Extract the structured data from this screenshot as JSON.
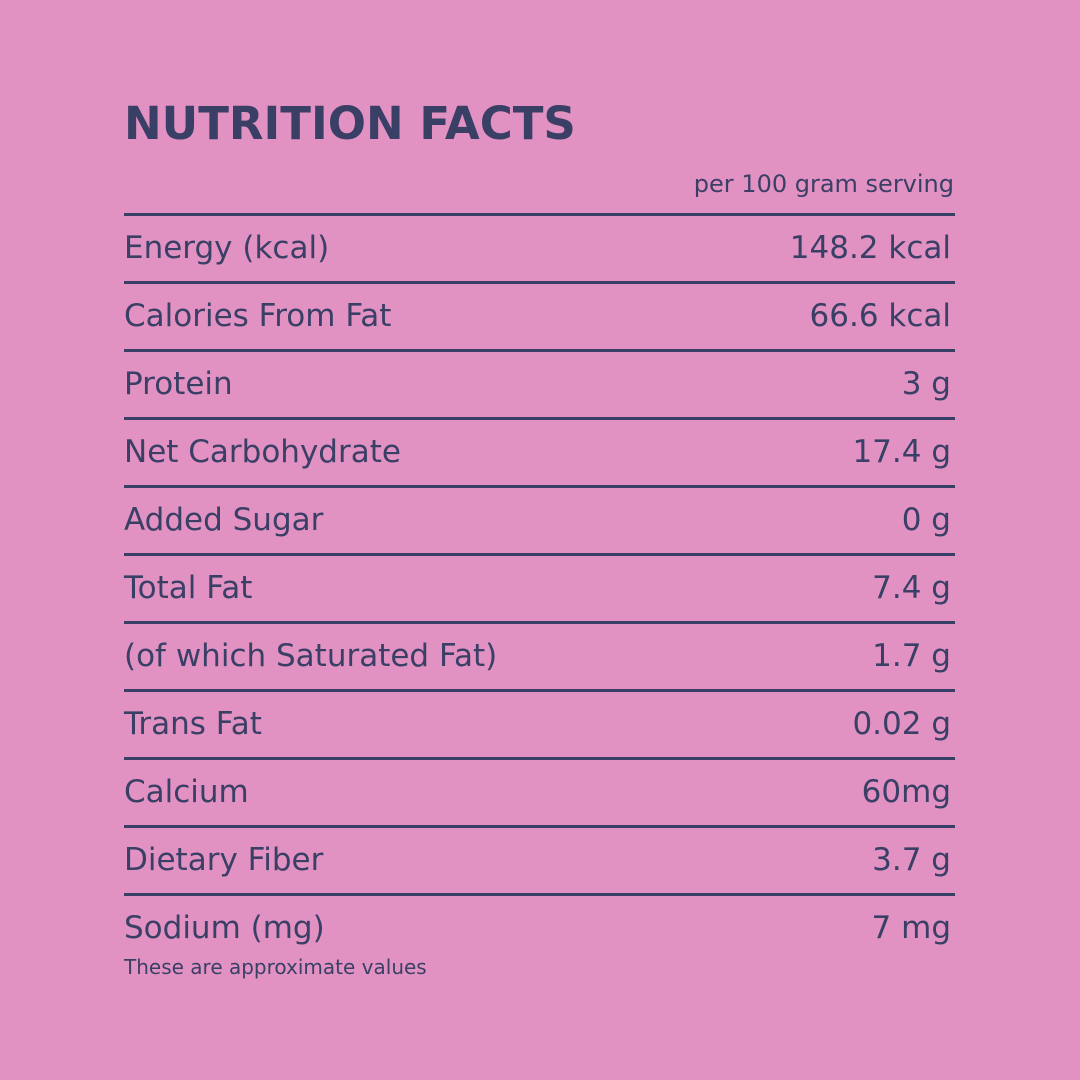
{
  "colors": {
    "background": "#E292C2",
    "text": "#3A3F66"
  },
  "header": {
    "title": "NUTRITION FACTS",
    "serving": "per 100 gram serving"
  },
  "rows": [
    {
      "label": "Energy (kcal)",
      "value": "148.2 kcal"
    },
    {
      "label": "Calories From Fat",
      "value": "66.6 kcal"
    },
    {
      "label": "Protein",
      "value": "3 g"
    },
    {
      "label": "Net Carbohydrate",
      "value": "17.4 g"
    },
    {
      "label": "Added Sugar",
      "value": "0 g"
    },
    {
      "label": "Total Fat",
      "value": "7.4 g"
    },
    {
      "label": "(of which Saturated Fat)",
      "value": "1.7 g"
    },
    {
      "label": "Trans Fat",
      "value": "0.02 g"
    },
    {
      "label": "Calcium",
      "value": "60mg"
    },
    {
      "label": "Dietary Fiber",
      "value": "3.7 g"
    },
    {
      "label": "Sodium (mg)",
      "value": "7 mg"
    }
  ],
  "footer": {
    "note": "These are approximate values"
  }
}
